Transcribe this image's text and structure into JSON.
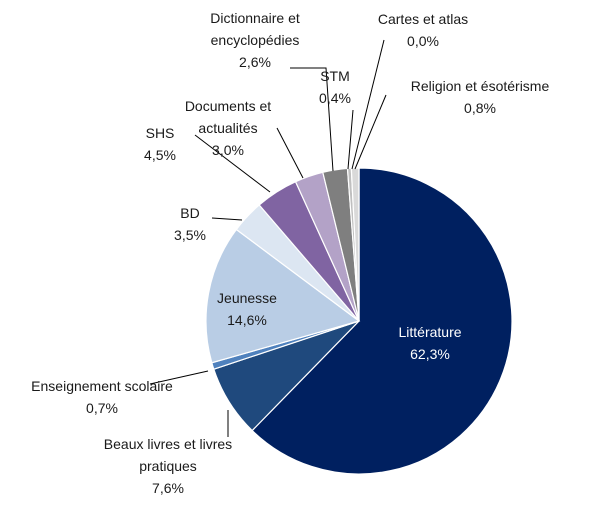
{
  "chart_data": {
    "type": "pie",
    "categories": [
      "Littérature",
      "Beaux livres et livres pratiques",
      "Enseignement scolaire",
      "Jeunesse",
      "BD",
      "SHS",
      "Documents et actualités",
      "Dictionnaire et encyclopédies",
      "STM",
      "Religion et ésotérisme",
      "Cartes et atlas"
    ],
    "values": [
      62.3,
      7.6,
      0.7,
      14.6,
      3.5,
      4.5,
      3.0,
      2.6,
      0.4,
      0.8,
      0.0
    ],
    "value_labels": [
      "62,3%",
      "7,6%",
      "0,7%",
      "14,6%",
      "3,5%",
      "4,5%",
      "3,0%",
      "2,6%",
      "0,4%",
      "0,8%",
      "0,0%"
    ],
    "colors": [
      "#002060",
      "#1f497d",
      "#4f81bd",
      "#b9cde5",
      "#dce6f2",
      "#8064a2",
      "#b3a2c7",
      "#7f7f7f",
      "#bfbfbf",
      "#d9d9d9",
      "#c6d9f1"
    ]
  }
}
